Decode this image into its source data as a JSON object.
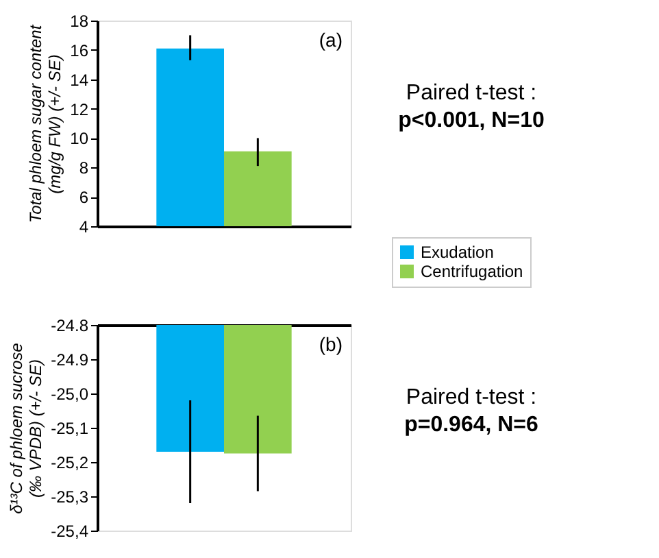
{
  "chart_data": [
    {
      "type": "bar",
      "ylabel": "Total phloem sugar content (mg/g FW) (+/- SE)",
      "categories": [
        null
      ],
      "series": [
        {
          "name": "Exudation",
          "color": "#00b0f0",
          "values": [
            16.1
          ],
          "errors": [
            [
              15.3,
              17.0
            ]
          ]
        },
        {
          "name": "Centrifugation",
          "color": "#92d050",
          "values": [
            9.1
          ],
          "errors": [
            [
              8.1,
              10.0
            ]
          ]
        }
      ],
      "ylim": [
        4,
        18
      ],
      "yticks": [
        4,
        6,
        8,
        10,
        12,
        14,
        16,
        18
      ],
      "grid": false,
      "legend": "bottom right",
      "tick_labels": "y",
      "annotations": [
        "(a)",
        "Paired t-test :",
        "p<0.001, N=10"
      ]
    },
    {
      "type": "bar",
      "ylabel": "δ¹³C of phloem sucrose (‰ VPDB) (+/- SE)",
      "categories": [
        null
      ],
      "series": [
        {
          "name": "Exudation",
          "color": "#00b0f0",
          "values": [
            -25.17
          ],
          "errors": [
            [
              -25.32,
              -25.02
            ]
          ]
        },
        {
          "name": "Centrifugation",
          "color": "#92d050",
          "values": [
            -25.175
          ],
          "errors": [
            [
              -25.285,
              -25.065
            ]
          ]
        }
      ],
      "ylim": [
        -25.4,
        -24.8
      ],
      "yticks": [
        -24.8,
        -24.9,
        {
          "value": -25.0,
          "label": "-25,0"
        },
        {
          "value": -25.1,
          "label": "-25,1"
        },
        {
          "value": -25.2,
          "label": "-25,2"
        },
        {
          "value": -25.3,
          "label": "-25,3"
        },
        {
          "value": -25.4,
          "label": "-25,4"
        }
      ],
      "grid": false,
      "legend": false,
      "tick_labels": "y",
      "annotations": [
        "(b)",
        "Paired t-test :",
        "p=0.964, N=6"
      ]
    }
  ]
}
